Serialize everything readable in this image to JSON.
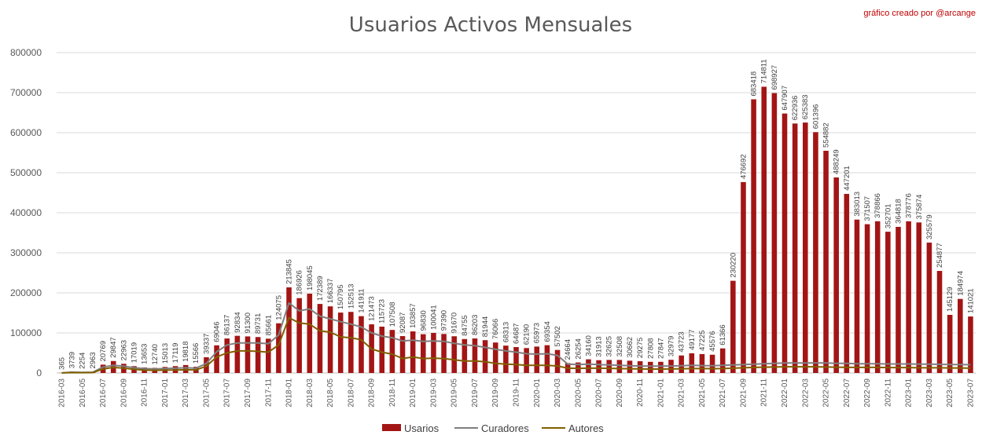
{
  "header": {
    "credit": "gráfico creado por @arcange"
  },
  "chart_data": {
    "type": "bar",
    "title": "Usuarios Activos Mensuales",
    "xlabel": "",
    "ylabel": "",
    "ylim": [
      0,
      800000
    ],
    "yticks": [
      0,
      100000,
      200000,
      300000,
      400000,
      500000,
      600000,
      700000,
      800000
    ],
    "grid": true,
    "legend_position": "bottom",
    "colors": {
      "Usarios": "#a31515",
      "Curadores": "#7f7f7f",
      "Autores": "#7f6000"
    },
    "x_tick_labels": [
      "2016-03",
      "2016-05",
      "2016-07",
      "2016-09",
      "2016-11",
      "2017-01",
      "2017-03",
      "2017-05",
      "2017-07",
      "2017-09",
      "2017-11",
      "2018-01",
      "2018-03",
      "2018-05",
      "2018-07",
      "2018-09",
      "2018-11",
      "2019-01",
      "2019-03",
      "2019-05",
      "2019-07",
      "2019-09",
      "2019-11",
      "2020-01",
      "2020-03",
      "2020-05",
      "2020-07",
      "2020-09",
      "2020-11",
      "2021-01",
      "2021-03",
      "2021-05",
      "2021-07",
      "2021-09",
      "2021-11",
      "2022-01",
      "2022-03",
      "2022-05",
      "2022-07",
      "2022-09",
      "2022-11",
      "2023-01",
      "2023-03",
      "2023-05",
      "2023-07"
    ],
    "categories": [
      "2016-03",
      "2016-04",
      "2016-05",
      "2016-06",
      "2016-07",
      "2016-08",
      "2016-09",
      "2016-10",
      "2016-11",
      "2016-12",
      "2017-01",
      "2017-02",
      "2017-03",
      "2017-04",
      "2017-05",
      "2017-06",
      "2017-07",
      "2017-08",
      "2017-09",
      "2017-10",
      "2017-11",
      "2017-12",
      "2018-01",
      "2018-02",
      "2018-03",
      "2018-04",
      "2018-05",
      "2018-06",
      "2018-07",
      "2018-08",
      "2018-09",
      "2018-10",
      "2018-11",
      "2018-12",
      "2019-01",
      "2019-02",
      "2019-03",
      "2019-04",
      "2019-05",
      "2019-06",
      "2019-07",
      "2019-08",
      "2019-09",
      "2019-10",
      "2019-11",
      "2019-12",
      "2020-01",
      "2020-02",
      "2020-03",
      "2020-04",
      "2020-05",
      "2020-06",
      "2020-07",
      "2020-08",
      "2020-09",
      "2020-10",
      "2020-11",
      "2020-12",
      "2021-01",
      "2021-02",
      "2021-03",
      "2021-04",
      "2021-05",
      "2021-06",
      "2021-07",
      "2021-08",
      "2021-09",
      "2021-10",
      "2021-11",
      "2021-12",
      "2022-01",
      "2022-02",
      "2022-03",
      "2022-04",
      "2022-05",
      "2022-06",
      "2022-07",
      "2022-08",
      "2022-09",
      "2022-10",
      "2022-11",
      "2022-12",
      "2023-01",
      "2023-02",
      "2023-03",
      "2023-04",
      "2023-05",
      "2023-06",
      "2023-07"
    ],
    "series": [
      {
        "name": "Usarios",
        "type": "bar",
        "values": [
          365,
          3739,
          2254,
          2963,
          20769,
          29847,
          22963,
          17019,
          13653,
          12740,
          15013,
          17119,
          19818,
          15566,
          39337,
          69046,
          86137,
          92834,
          91300,
          89731,
          85661,
          124075,
          213845,
          186926,
          198045,
          172389,
          166337,
          150795,
          152513,
          141911,
          121473,
          115723,
          107508,
          92087,
          103857,
          96830,
          100041,
          97390,
          91670,
          84755,
          86203,
          81944,
          76066,
          68313,
          64687,
          62190,
          65973,
          69354,
          57502,
          24664,
          26254,
          34160,
          31913,
          32625,
          32508,
          30662,
          29275,
          27808,
          27847,
          32979,
          43723,
          49177,
          47225,
          45576,
          61366,
          230220,
          476692,
          683418,
          714811,
          698927,
          647907,
          622936,
          625383,
          601396,
          554882,
          488249,
          447201,
          383013,
          371507,
          378866,
          352701,
          364818,
          378776,
          375874,
          325579,
          254877,
          145129,
          184974,
          141021
        ]
      },
      {
        "name": "Curadores",
        "type": "line",
        "values": [
          200,
          2000,
          1500,
          2000,
          15000,
          19000,
          17000,
          13000,
          11000,
          10000,
          11000,
          12000,
          13000,
          12000,
          24000,
          53000,
          70000,
          75000,
          75000,
          75000,
          73000,
          95000,
          175000,
          155000,
          160000,
          142000,
          135000,
          128000,
          122000,
          115000,
          100000,
          92000,
          88000,
          80000,
          82000,
          79000,
          80000,
          79000,
          74000,
          70000,
          68000,
          64000,
          59000,
          55000,
          52000,
          48000,
          47000,
          48000,
          44000,
          22000,
          21000,
          22000,
          21000,
          20000,
          19000,
          18000,
          17500,
          17000,
          17000,
          17500,
          18000,
          19000,
          18500,
          18000,
          19000,
          20000,
          21000,
          22000,
          23000,
          24000,
          25000,
          25000,
          25000,
          25000,
          25000,
          24000,
          24000,
          23000,
          23000,
          23000,
          22500,
          22500,
          22500,
          22000,
          22000,
          21500,
          21000,
          21000,
          20500
        ]
      },
      {
        "name": "Autores",
        "type": "line",
        "values": [
          100,
          1000,
          800,
          1000,
          10000,
          14000,
          12000,
          9000,
          7000,
          6500,
          7000,
          7500,
          8000,
          7500,
          17000,
          40000,
          50000,
          55000,
          55000,
          54000,
          52000,
          70000,
          138000,
          125000,
          122000,
          105000,
          102000,
          90000,
          88000,
          83000,
          60000,
          52000,
          47000,
          36000,
          40000,
          36000,
          37000,
          36000,
          33000,
          30000,
          30000,
          28000,
          24000,
          22000,
          21000,
          19000,
          19000,
          19000,
          17500,
          12000,
          11500,
          12000,
          12000,
          11500,
          11000,
          10500,
          10000,
          9800,
          9800,
          10000,
          10500,
          11000,
          11000,
          10800,
          11000,
          12000,
          13000,
          14000,
          14500,
          15000,
          15500,
          15500,
          15500,
          15500,
          15000,
          14500,
          14000,
          14000,
          14000,
          14000,
          13500,
          13500,
          13500,
          13000,
          13000,
          13000,
          12500,
          12500,
          12000
        ]
      }
    ]
  }
}
